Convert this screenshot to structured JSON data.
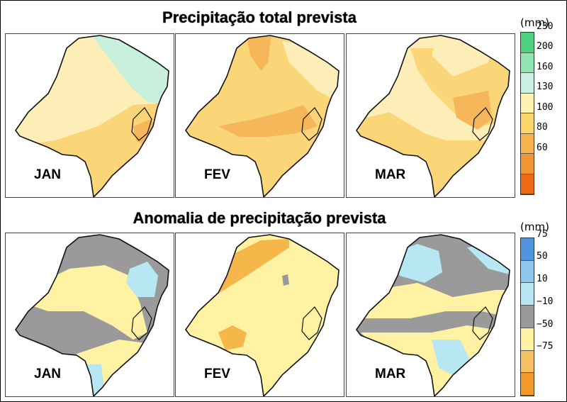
{
  "top_title": "Precipitação total prevista",
  "bottom_title": "Anomalia de precipitação prevista",
  "top_row": {
    "months": [
      "JAN",
      "FEV",
      "MAR"
    ]
  },
  "bottom_row": {
    "months": [
      "JAN",
      "FEV",
      "MAR"
    ]
  },
  "legend_top": {
    "unit": "(mm)",
    "ticks": [
      "230",
      "200",
      "160",
      "130",
      "100",
      "80",
      "60"
    ],
    "colors": [
      "#4fd27e",
      "#8fe6b0",
      "#c9f3e2",
      "#fff2b3",
      "#fbd56a",
      "#f7b34b",
      "#f39535",
      "#ee6a12"
    ]
  },
  "legend_bottom": {
    "unit": "(mm)",
    "ticks": [
      "75",
      "50",
      "10",
      "−10",
      "−50",
      "−75"
    ],
    "colors": [
      "#4f94dd",
      "#8ec7ee",
      "#b6e7f3",
      "#9a9a9a",
      "#fff3a3",
      "#f7c060",
      "#f39a2a"
    ]
  },
  "map_colors": {
    "precip_130_160": "#fdeeb8",
    "precip_100_130": "#fbd678",
    "precip_80_100": "#f6b75a",
    "precip_160_200": "#c8f0dc",
    "precip_200_230": "#98e8bc",
    "anom_neg10_10": "#9a9a9a",
    "anom_10_50": "#b6e7f3",
    "anom_neg10_neg50": "#fff3a3",
    "anom_neg50_neg75": "#f5b64a"
  }
}
